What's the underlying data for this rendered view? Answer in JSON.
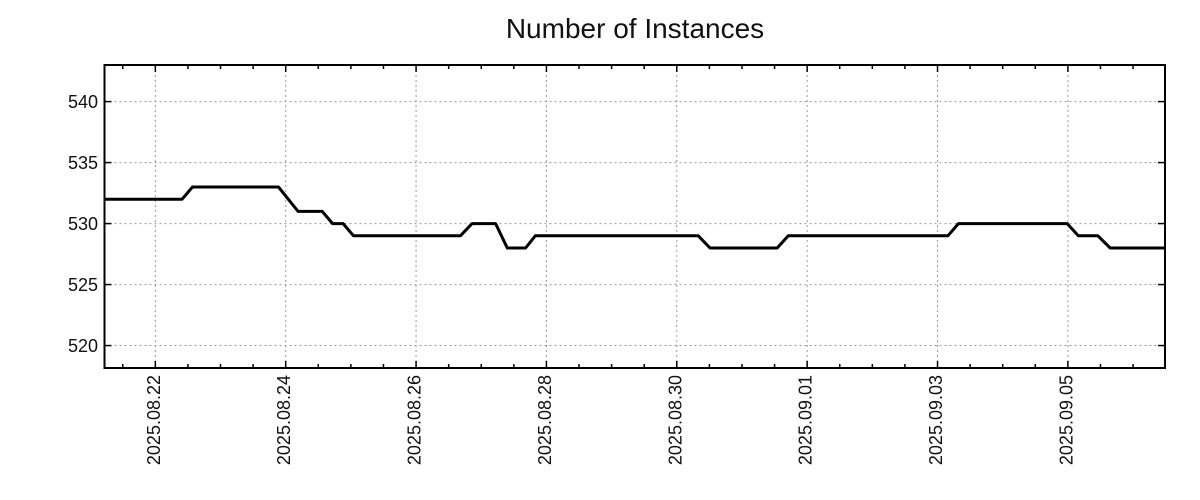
{
  "chart_data": {
    "type": "line",
    "title": "Number of Instances",
    "background": "#ffffff",
    "frame_color": "#000000",
    "grid": {
      "show": true,
      "color": "#999999",
      "dash": "2,3"
    },
    "x_axis": {
      "unit": "days since 2025-08-22 00:00",
      "range": [
        -0.78,
        15.49
      ],
      "major_ticks": [
        {
          "t": 0,
          "label": "2025.08.22"
        },
        {
          "t": 2,
          "label": "2025.08.24"
        },
        {
          "t": 4,
          "label": "2025.08.26"
        },
        {
          "t": 6,
          "label": "2025.08.28"
        },
        {
          "t": 8,
          "label": "2025.08.30"
        },
        {
          "t": 10,
          "label": "2025.09.01"
        },
        {
          "t": 12,
          "label": "2025.09.03"
        },
        {
          "t": 14,
          "label": "2025.09.05"
        }
      ],
      "minor_tick_step": 0.5
    },
    "y_axis": {
      "range": [
        518.16,
        543.0
      ],
      "major_ticks": [
        {
          "v": 520,
          "label": "520"
        },
        {
          "v": 525,
          "label": "525"
        },
        {
          "v": 530,
          "label": "530"
        },
        {
          "v": 535,
          "label": "535"
        },
        {
          "v": 540,
          "label": "540"
        }
      ]
    },
    "series": [
      {
        "name": "instances",
        "color": "#000000",
        "line_width": 3,
        "points": [
          [
            -0.78,
            532
          ],
          [
            0.41,
            532
          ],
          [
            0.57,
            533
          ],
          [
            1.89,
            533
          ],
          [
            2.19,
            531
          ],
          [
            2.56,
            531
          ],
          [
            2.72,
            530
          ],
          [
            2.88,
            530
          ],
          [
            3.04,
            529
          ],
          [
            4.68,
            529
          ],
          [
            4.86,
            530
          ],
          [
            5.22,
            530
          ],
          [
            5.4,
            528
          ],
          [
            5.68,
            528
          ],
          [
            5.83,
            529
          ],
          [
            8.33,
            529
          ],
          [
            8.51,
            528
          ],
          [
            9.54,
            528
          ],
          [
            9.71,
            529
          ],
          [
            12.16,
            529
          ],
          [
            12.32,
            530
          ],
          [
            13.99,
            530
          ],
          [
            14.16,
            529
          ],
          [
            14.46,
            529
          ],
          [
            14.65,
            528
          ],
          [
            15.49,
            528
          ]
        ]
      }
    ],
    "legend": {
      "show": false
    }
  }
}
